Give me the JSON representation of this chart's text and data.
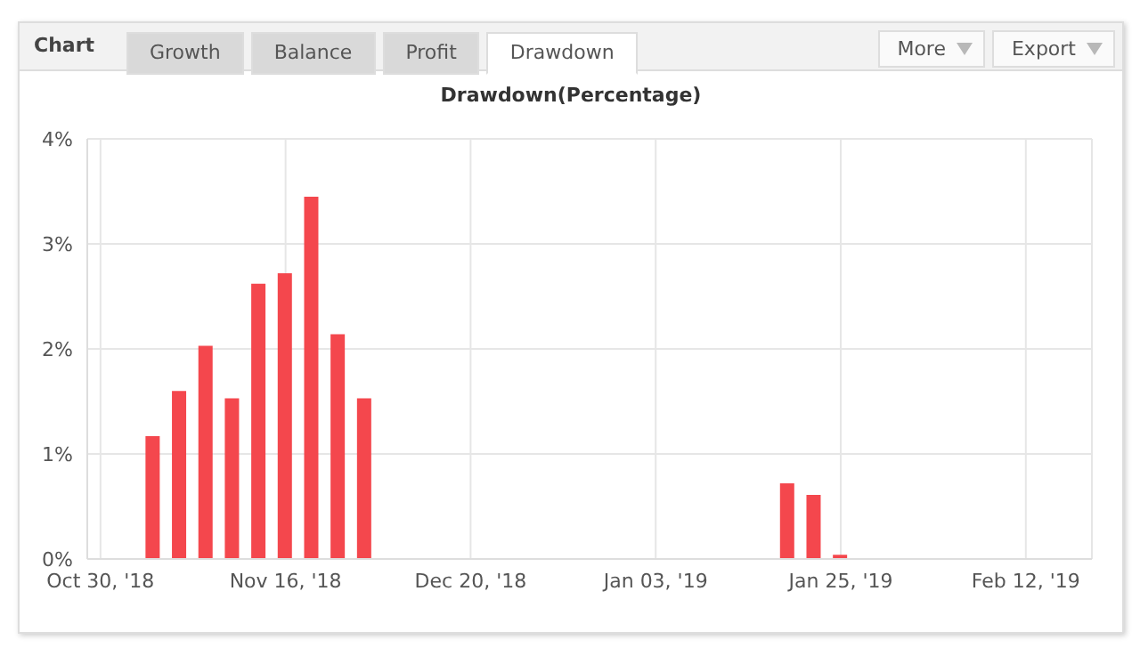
{
  "chart_data": {
    "type": "bar",
    "title": "Drawdown(Percentage)",
    "annotations": [
      "Chart",
      "Growth",
      "Balance",
      "Profit",
      "Drawdown",
      "More",
      "Export"
    ],
    "categories": [
      "Oct 30, '18",
      null,
      null,
      null,
      null,
      null,
      null,
      "Nov 16, '18",
      null,
      null,
      null,
      null,
      null,
      null,
      "Dec 20, '18",
      null,
      null,
      null,
      null,
      null,
      null,
      "Jan 03, '19",
      null,
      null,
      null,
      null,
      null,
      null,
      "Jan 25, '19",
      null,
      null,
      null,
      null,
      null,
      null,
      "Feb 12, '19",
      null,
      null
    ],
    "values": [
      0,
      0,
      1.17,
      1.6,
      2.03,
      1.53,
      2.62,
      2.72,
      3.45,
      2.14,
      1.53,
      0,
      0,
      0,
      0,
      0,
      0,
      0,
      0,
      0,
      0,
      0,
      0,
      0,
      0,
      0,
      0.72,
      0.61,
      0.04,
      0,
      0,
      0,
      0,
      0,
      0,
      0,
      0,
      0
    ],
    "color": "#f4474d",
    "ylim": [
      0,
      4
    ],
    "yticks": [
      {
        "value": 0,
        "label": "0%"
      },
      {
        "value": 1,
        "label": "1%"
      },
      {
        "value": 2,
        "label": "2%"
      },
      {
        "value": 3,
        "label": "3%"
      },
      {
        "value": 4,
        "label": "4%"
      }
    ],
    "grid": true,
    "legend": false
  }
}
